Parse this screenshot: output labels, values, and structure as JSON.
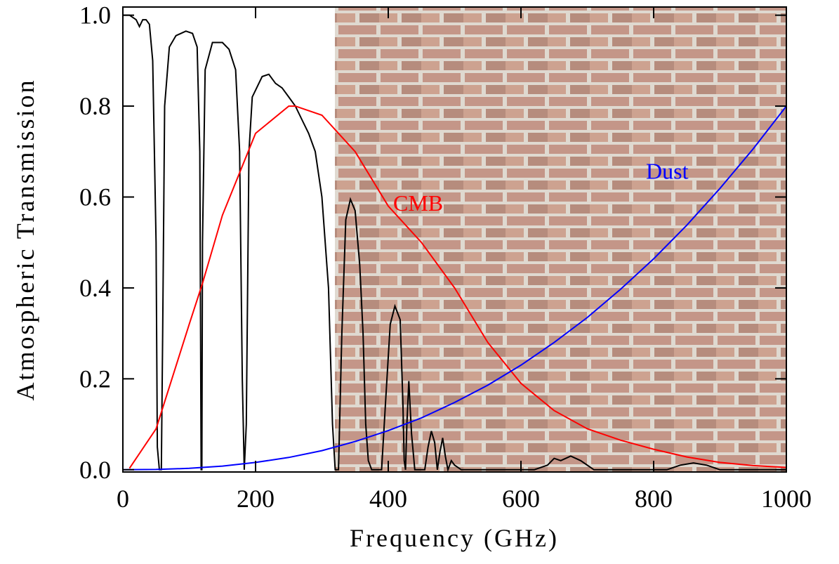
{
  "chart_data": {
    "type": "line",
    "xlabel": "Frequency (GHz)",
    "ylabel": "Atmospheric Transmission",
    "xlim": [
      0,
      1000
    ],
    "ylim": [
      -0.005,
      1.018
    ],
    "xticks": [
      0,
      200,
      400,
      600,
      800,
      1000
    ],
    "yticks": [
      {
        "value": 0,
        "label": "0.0"
      },
      0.2,
      0.4,
      0.6,
      0.8,
      {
        "value": 1,
        "label": "1.0"
      }
    ],
    "series": [
      {
        "color": "#000000",
        "x": [
          0,
          10,
          20,
          25,
          30,
          35,
          40,
          45,
          50,
          52,
          55,
          58,
          60,
          63,
          70,
          80,
          95,
          105,
          112,
          116,
          118,
          119,
          120,
          124,
          135,
          150,
          160,
          170,
          176,
          180,
          183,
          186,
          190,
          195,
          210,
          220,
          230,
          240,
          250,
          260,
          270,
          280,
          290,
          300,
          310,
          316,
          320,
          325,
          330,
          336,
          343,
          350,
          357,
          362,
          366,
          370,
          375,
          390,
          396,
          403,
          410,
          418,
          422,
          424,
          426,
          428,
          431,
          435,
          440,
          455,
          460,
          465,
          470,
          474,
          478,
          482,
          486,
          490,
          495,
          500,
          510,
          620,
          640,
          650,
          660,
          675,
          690,
          710,
          820,
          840,
          860,
          880,
          900,
          1000
        ],
        "values": [
          1.0,
          1.0,
          0.99,
          0.975,
          0.99,
          0.99,
          0.98,
          0.9,
          0.5,
          0.05,
          0.0,
          0.0,
          0.3,
          0.8,
          0.93,
          0.955,
          0.965,
          0.96,
          0.93,
          0.7,
          0.0,
          0.0,
          0.5,
          0.88,
          0.94,
          0.94,
          0.925,
          0.88,
          0.7,
          0.2,
          0.0,
          0.1,
          0.7,
          0.82,
          0.865,
          0.87,
          0.85,
          0.84,
          0.82,
          0.8,
          0.77,
          0.74,
          0.7,
          0.6,
          0.4,
          0.1,
          0.0,
          0.0,
          0.3,
          0.55,
          0.595,
          0.57,
          0.45,
          0.3,
          0.1,
          0.02,
          0.0,
          0.0,
          0.15,
          0.32,
          0.36,
          0.33,
          0.15,
          0.02,
          0.0,
          0.1,
          0.195,
          0.08,
          0.0,
          0.0,
          0.05,
          0.085,
          0.06,
          0.0,
          0.04,
          0.07,
          0.03,
          0.0,
          0.02,
          0.01,
          0.0,
          0.0,
          0.01,
          0.025,
          0.02,
          0.03,
          0.02,
          0.0,
          0.0,
          0.01,
          0.015,
          0.01,
          0.0,
          0.0
        ]
      },
      {
        "name": "CMB",
        "color": "#ff0000",
        "x": [
          10,
          50,
          100,
          120,
          150,
          200,
          250,
          260,
          300,
          350,
          400,
          450,
          500,
          550,
          600,
          650,
          700,
          750,
          800,
          850,
          900,
          950,
          1000
        ],
        "values": [
          0.003,
          0.09,
          0.32,
          0.41,
          0.56,
          0.74,
          0.8,
          0.8,
          0.78,
          0.7,
          0.58,
          0.5,
          0.4,
          0.28,
          0.19,
          0.13,
          0.09,
          0.065,
          0.045,
          0.028,
          0.016,
          0.009,
          0.005
        ]
      },
      {
        "name": "Dust",
        "color": "#0000ff",
        "x": [
          0,
          50,
          100,
          150,
          200,
          250,
          300,
          350,
          400,
          450,
          500,
          550,
          600,
          650,
          700,
          750,
          800,
          850,
          900,
          950,
          1000
        ],
        "values": [
          0,
          0.0005,
          0.003,
          0.008,
          0.016,
          0.027,
          0.042,
          0.062,
          0.086,
          0.114,
          0.148,
          0.186,
          0.23,
          0.28,
          0.335,
          0.397,
          0.464,
          0.538,
          0.619,
          0.706,
          0.8
        ]
      }
    ]
  }
}
